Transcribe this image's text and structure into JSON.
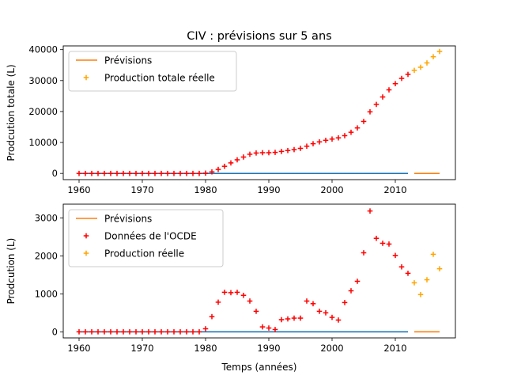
{
  "figure_title": "CIV : prévisions sur 5 ans",
  "chart_data": [
    {
      "type": "scatter",
      "ylabel": "Prodcution totale (L)",
      "xlim": [
        1957.5,
        2019.5
      ],
      "ylim": [
        -2000,
        41200
      ],
      "xticks": [
        1960,
        1970,
        1980,
        1990,
        2000,
        2010
      ],
      "yticks": [
        0,
        10000,
        20000,
        30000,
        40000
      ],
      "legend_position": "upper-left",
      "legend": [
        "Prévisions",
        "Production totale réelle"
      ],
      "series": [
        {
          "name": "",
          "kind": "line",
          "color": "#1f77b4",
          "x": [
            1960,
            2012
          ],
          "y": [
            0,
            0
          ]
        },
        {
          "name": "Prévisions",
          "kind": "line",
          "color": "#ff7f0e",
          "x": [
            2013,
            2017
          ],
          "y": [
            0,
            0
          ]
        },
        {
          "name": "",
          "kind": "marker",
          "color": "#ff0000",
          "x": [
            1960,
            1961,
            1962,
            1963,
            1964,
            1965,
            1966,
            1967,
            1968,
            1969,
            1970,
            1971,
            1972,
            1973,
            1974,
            1975,
            1976,
            1977,
            1978,
            1979,
            1980,
            1981,
            1982,
            1983,
            1984,
            1985,
            1986,
            1987,
            1988,
            1989,
            1990,
            1991,
            1992,
            1993,
            1994,
            1995,
            1996,
            1997,
            1998,
            1999,
            2000,
            2001,
            2002,
            2003,
            2004,
            2005,
            2006,
            2007,
            2008,
            2009,
            2010,
            2011,
            2012
          ],
          "y": [
            0,
            0,
            0,
            0,
            0,
            0,
            0,
            0,
            0,
            0,
            0,
            0,
            0,
            0,
            0,
            0,
            0,
            0,
            0,
            0,
            100,
            500,
            1300,
            2300,
            3400,
            4400,
            5300,
            6200,
            6600,
            6700,
            6700,
            6800,
            7100,
            7400,
            7700,
            8100,
            8800,
            9600,
            10200,
            10700,
            11100,
            11500,
            12200,
            13300,
            14700,
            16800,
            19900,
            22300,
            24700,
            27000,
            29000,
            30700,
            32000
          ]
        },
        {
          "name": "Production totale réelle",
          "kind": "marker",
          "color": "#ffa500",
          "x": [
            2013,
            2014,
            2015,
            2016,
            2017
          ],
          "y": [
            33300,
            34300,
            35700,
            37700,
            39400
          ]
        }
      ]
    },
    {
      "type": "scatter",
      "xlabel": "Temps (années)",
      "ylabel": "Prodcution (L)",
      "xlim": [
        1957.5,
        2019.5
      ],
      "ylim": [
        -160,
        3360
      ],
      "xticks": [
        1960,
        1970,
        1980,
        1990,
        2000,
        2010
      ],
      "yticks": [
        0,
        1000,
        2000,
        3000
      ],
      "legend_position": "upper-left",
      "legend": [
        "Prévisions",
        "Données de l'OCDE",
        "Production réelle"
      ],
      "series": [
        {
          "name": "",
          "kind": "line",
          "color": "#1f77b4",
          "x": [
            1960,
            2012
          ],
          "y": [
            0,
            0
          ]
        },
        {
          "name": "Prévisions",
          "kind": "line",
          "color": "#ff7f0e",
          "x": [
            2013,
            2017
          ],
          "y": [
            0,
            0
          ]
        },
        {
          "name": "Données de l'OCDE",
          "kind": "marker",
          "color": "#ff0000",
          "x": [
            1960,
            1961,
            1962,
            1963,
            1964,
            1965,
            1966,
            1967,
            1968,
            1969,
            1970,
            1971,
            1972,
            1973,
            1974,
            1975,
            1976,
            1977,
            1978,
            1979,
            1980,
            1981,
            1982,
            1983,
            1984,
            1985,
            1986,
            1987,
            1988,
            1989,
            1990,
            1991,
            1992,
            1993,
            1994,
            1995,
            1996,
            1997,
            1998,
            1999,
            2000,
            2001,
            2002,
            2003,
            2004,
            2005,
            2006,
            2007,
            2008,
            2009,
            2010,
            2011,
            2012
          ],
          "y": [
            0,
            0,
            0,
            0,
            0,
            0,
            0,
            0,
            0,
            0,
            0,
            0,
            0,
            0,
            0,
            0,
            0,
            0,
            0,
            0,
            80,
            400,
            780,
            1040,
            1030,
            1040,
            960,
            810,
            540,
            130,
            100,
            60,
            320,
            340,
            360,
            360,
            810,
            740,
            540,
            500,
            380,
            310,
            770,
            1080,
            1330,
            2080,
            3180,
            2460,
            2330,
            2310,
            2010,
            1710,
            1540
          ]
        },
        {
          "name": "Production réelle",
          "kind": "marker",
          "color": "#ffa500",
          "x": [
            2013,
            2014,
            2015,
            2016,
            2017
          ],
          "y": [
            1290,
            980,
            1370,
            2040,
            1660
          ]
        }
      ]
    }
  ]
}
